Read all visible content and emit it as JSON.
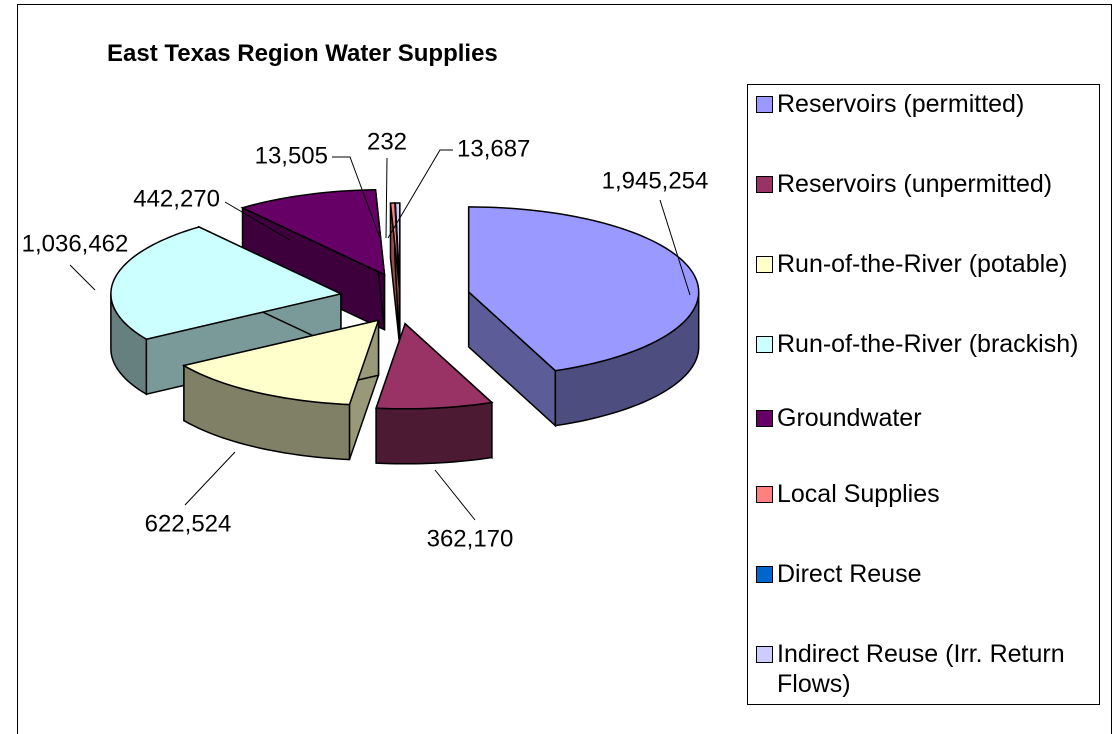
{
  "chart_data": {
    "type": "pie",
    "title": "East Texas Region Water Supplies",
    "categories": [
      "Reservoirs (permitted)",
      "Reservoirs (unpermitted)",
      "Run-of-the-River (potable)",
      "Run-of-the-River (brackish)",
      "Groundwater",
      "Local Supplies",
      "Direct Reuse",
      "Indirect Reuse (Irr. Return Flows)"
    ],
    "values": [
      1945254,
      362170,
      622524,
      1036462,
      442270,
      13505,
      232,
      13687
    ],
    "value_labels": [
      "1,945,254",
      "362,170",
      "622,524",
      "1,036,462",
      "442,270",
      "13,505",
      "232",
      "13,687"
    ],
    "colors": [
      "#9999FF",
      "#993366",
      "#FFFFCC",
      "#CCFFFF",
      "#660066",
      "#FF8080",
      "#0066CC",
      "#CCCCFF"
    ],
    "legend": "right"
  }
}
